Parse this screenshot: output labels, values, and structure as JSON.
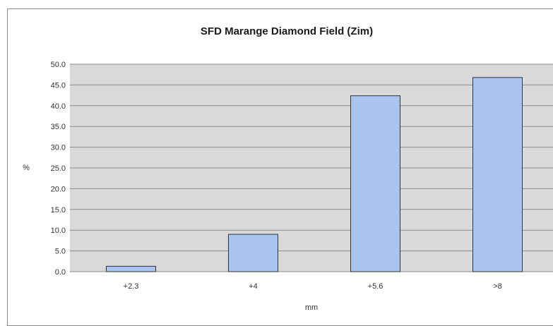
{
  "chart_data": {
    "type": "bar",
    "title": "SFD Marange Diamond Field (Zim)",
    "xlabel": "mm",
    "ylabel": "%",
    "categories": [
      "+2.3",
      "+4",
      "+5.6",
      ">8"
    ],
    "values": [
      1.3,
      9.0,
      42.4,
      46.8
    ],
    "ylim": [
      0,
      50
    ],
    "yticks": [
      "0.0",
      "5.0",
      "10.0",
      "15.0",
      "20.0",
      "25.0",
      "30.0",
      "35.0",
      "40.0",
      "45.0",
      "50.0"
    ],
    "grid": true,
    "legend": "none",
    "colors": {
      "bar": "#a9c4ee",
      "bar_stroke": "#333333",
      "plot_bg": "#d9d9d9",
      "grid": "#8a8a8a"
    }
  }
}
